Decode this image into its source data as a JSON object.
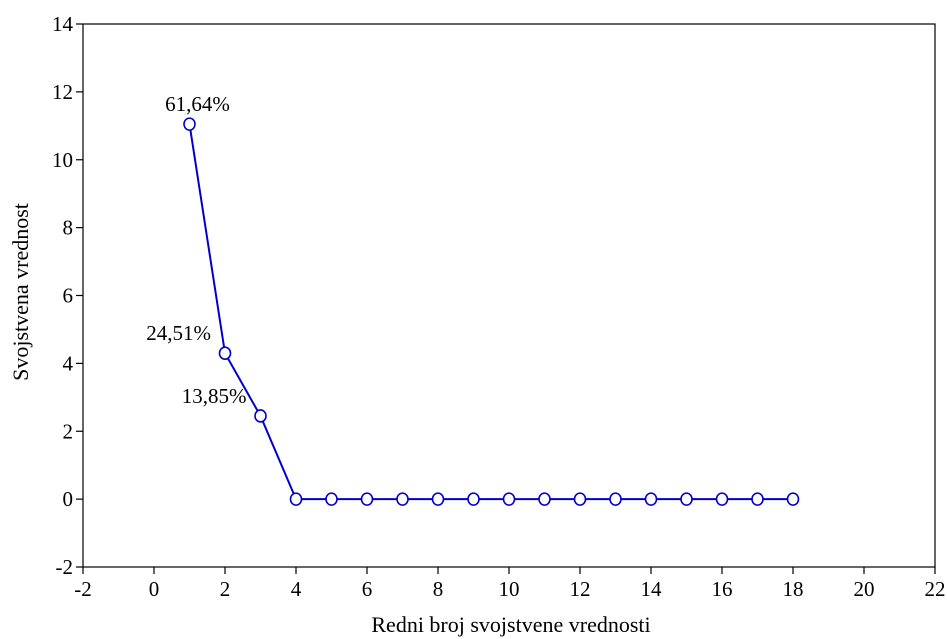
{
  "chart_data": {
    "type": "line",
    "title": "",
    "xlabel": "Redni broj svojstvene vrednosti",
    "ylabel": "Svojstvena vrednost",
    "xlim": [
      -2,
      22
    ],
    "ylim": [
      -2,
      14
    ],
    "xticks": [
      -2,
      0,
      2,
      4,
      6,
      8,
      10,
      12,
      14,
      16,
      18,
      20,
      22
    ],
    "yticks": [
      -2,
      0,
      2,
      4,
      6,
      8,
      10,
      12,
      14
    ],
    "grid": false,
    "series_color": "#0000cc",
    "marker_fill": "#ffffff",
    "series": [
      {
        "x": [
          1,
          2,
          3,
          4,
          5,
          6,
          7,
          8,
          9,
          10,
          11,
          12,
          13,
          14,
          15,
          16,
          17,
          18
        ],
        "values": [
          11.05,
          4.3,
          2.45,
          0,
          0,
          0,
          0,
          0,
          0,
          0,
          0,
          0,
          0,
          0,
          0,
          0,
          0,
          0
        ]
      }
    ],
    "annotations": [
      {
        "text": "61,64%",
        "x": 1,
        "y": 11.05,
        "anchor": "above"
      },
      {
        "text": "24,51%",
        "x": 2,
        "y": 4.3,
        "anchor": "left"
      },
      {
        "text": "13,85%",
        "x": 3,
        "y": 2.45,
        "anchor": "left"
      }
    ]
  }
}
